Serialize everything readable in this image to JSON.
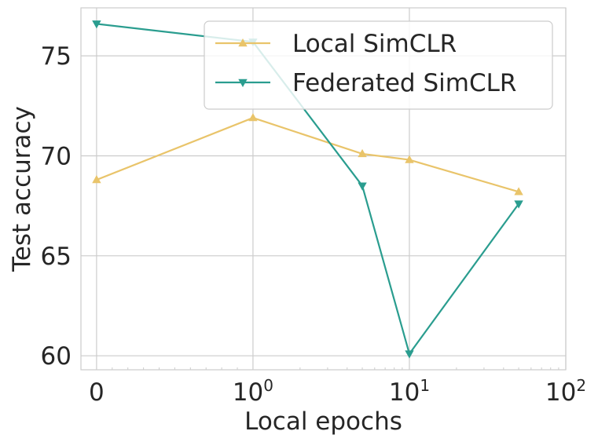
{
  "chart_data": {
    "type": "line",
    "xlabel": "Local epochs",
    "ylabel": "Test accuracy",
    "x_scale": "symlog",
    "xlim": [
      -0.1,
      100
    ],
    "ylim": [
      59.3,
      77.4
    ],
    "grid": true,
    "legend_position": "top-right",
    "x_ticks": [
      {
        "value": 0,
        "base": "0",
        "exp": ""
      },
      {
        "value": 1,
        "base": "10",
        "exp": "0"
      },
      {
        "value": 10,
        "base": "10",
        "exp": "1"
      },
      {
        "value": 100,
        "base": "10",
        "exp": "2"
      }
    ],
    "y_ticks": [
      60,
      65,
      70,
      75
    ],
    "series": [
      {
        "name": "Local SimCLR",
        "color": "#e9c46a",
        "marker": "triangle-up",
        "x": [
          0,
          1,
          5,
          10,
          50
        ],
        "y": [
          68.8,
          71.9,
          70.1,
          69.8,
          68.2
        ]
      },
      {
        "name": "Federated SimCLR",
        "color": "#2a9d8f",
        "marker": "triangle-down",
        "x": [
          0,
          1,
          5,
          10,
          50
        ],
        "y": [
          76.6,
          75.7,
          68.5,
          60.1,
          67.6
        ]
      }
    ]
  }
}
